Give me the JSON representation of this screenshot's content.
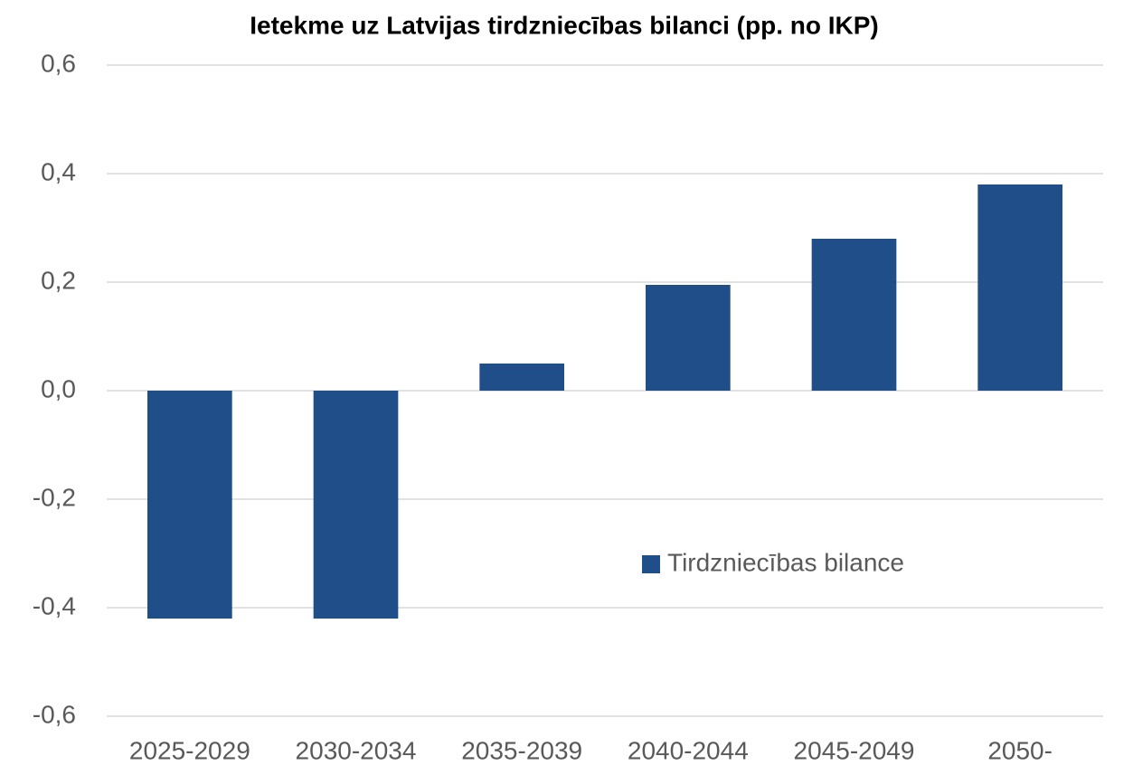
{
  "chart_data": {
    "type": "bar",
    "title": "Ietekme uz Latvijas tirdzniecības bilanci (pp. no IKP)",
    "categories": [
      "2025-2029",
      "2030-2034",
      "2035-2039",
      "2040-2044",
      "2045-2049",
      "2050-"
    ],
    "series": [
      {
        "name": "Tirdzniecības bilance",
        "color": "#1f4e89",
        "values": [
          -0.42,
          -0.42,
          0.05,
          0.195,
          0.28,
          0.38
        ]
      }
    ],
    "ylim": [
      -0.6,
      0.6
    ],
    "yticks": [
      {
        "value": -0.6,
        "label": "-0,6"
      },
      {
        "value": -0.4,
        "label": "-0,4"
      },
      {
        "value": -0.2,
        "label": "-0,2"
      },
      {
        "value": 0,
        "label": "0,0"
      },
      {
        "value": 0.2,
        "label": "0,2"
      },
      {
        "value": 0.4,
        "label": "0,4"
      },
      {
        "value": 0.6,
        "label": "0,6"
      }
    ],
    "grid": true,
    "legend": "lower right"
  }
}
